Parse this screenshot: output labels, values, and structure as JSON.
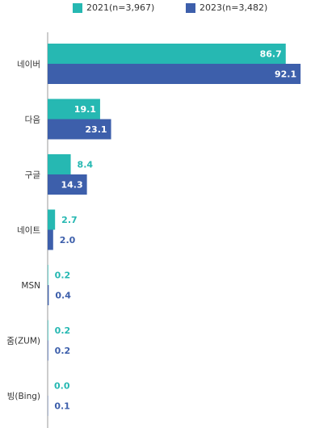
{
  "chart_data": {
    "type": "bar",
    "orientation": "horizontal",
    "categories": [
      "네이버",
      "다음",
      "구글",
      "네이트",
      "MSN",
      "줌(ZUM)",
      "빙(Bing)"
    ],
    "series": [
      {
        "name": "2021(n=3,967)",
        "color": "#26b8b2",
        "values": [
          86.7,
          19.1,
          8.4,
          2.7,
          0.2,
          0.2,
          0.0
        ]
      },
      {
        "name": "2023(n=3,482)",
        "color": "#3d5fab",
        "values": [
          92.1,
          23.1,
          14.3,
          2.0,
          0.4,
          0.2,
          0.1
        ]
      }
    ],
    "xlim": [
      0,
      100
    ],
    "grid": false,
    "legend_position": "top",
    "title": "",
    "xlabel": "",
    "ylabel": ""
  }
}
